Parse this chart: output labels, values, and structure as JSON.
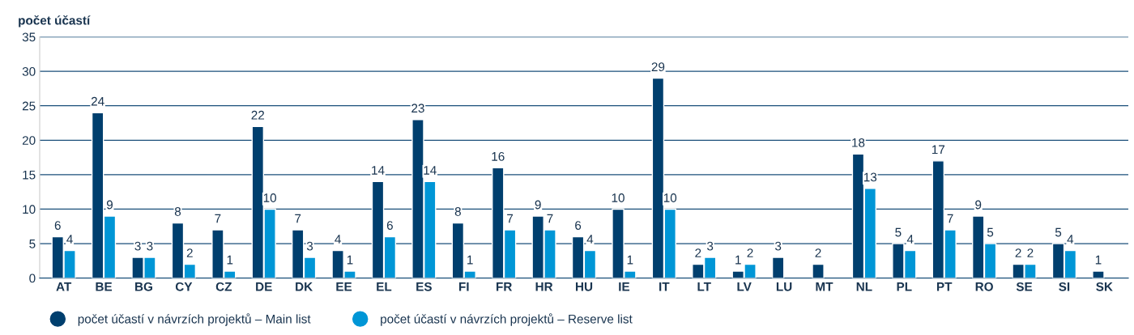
{
  "chart_data": {
    "type": "bar",
    "ylabel": "počet účastí",
    "categories": [
      "AT",
      "BE",
      "BG",
      "CY",
      "CZ",
      "DE",
      "DK",
      "EE",
      "EL",
      "ES",
      "FI",
      "FR",
      "HR",
      "HU",
      "IE",
      "IT",
      "LT",
      "LV",
      "LU",
      "MT",
      "NL",
      "PL",
      "PT",
      "RO",
      "SE",
      "SI",
      "SK"
    ],
    "series": [
      {
        "name": "počet účastí v návrzích projektů – Main list",
        "color": "#003f6e",
        "values": [
          6,
          24,
          3,
          8,
          7,
          22,
          7,
          4,
          14,
          23,
          8,
          16,
          9,
          6,
          10,
          29,
          2,
          1,
          3,
          2,
          18,
          5,
          17,
          9,
          2,
          5,
          1
        ]
      },
      {
        "name": "počet účastí v návrzích projektů – Reserve list",
        "color": "#0096d6",
        "values": [
          4,
          9,
          3,
          2,
          1,
          10,
          3,
          1,
          6,
          14,
          1,
          7,
          7,
          4,
          1,
          10,
          3,
          2,
          null,
          null,
          13,
          4,
          7,
          5,
          2,
          4,
          null
        ]
      }
    ],
    "ylim": [
      0,
      35
    ],
    "yticks": [
      0,
      5,
      10,
      15,
      20,
      25,
      30,
      35
    ],
    "grid": "y",
    "legend": "bottom left",
    "marker": "circle",
    "data_labels": true
  }
}
